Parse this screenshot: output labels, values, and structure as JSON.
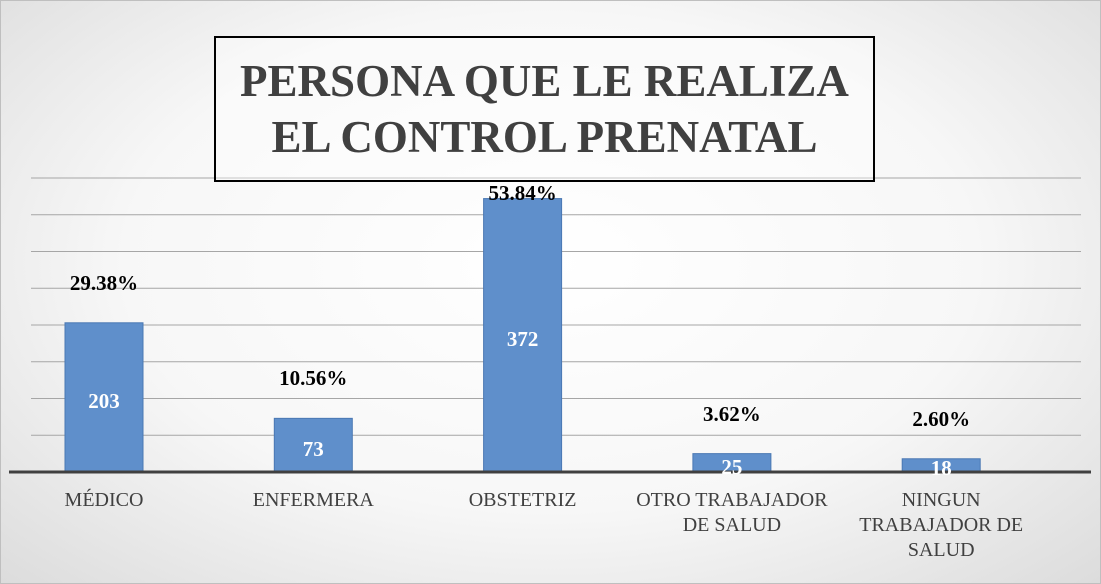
{
  "chart_data": {
    "type": "bar",
    "title": "PERSONA QUE LE REALIZA EL CONTROL PRENATAL",
    "categories": [
      "MÉDICO",
      "ENFERMERA",
      "OBSTETRIZ",
      "OTRO TRABAJADOR DE SALUD",
      "NINGUN TRABAJADOR DE SALUD"
    ],
    "values": [
      203,
      73,
      372,
      25,
      18
    ],
    "percent_values": [
      29.38,
      10.56,
      53.84,
      3.62,
      2.6
    ],
    "percent_labels": [
      "29.38%",
      "10.56%",
      "53.84%",
      "3.62%",
      "2.60%"
    ],
    "color": "#5f8fcb",
    "ylim": [
      0,
      400
    ],
    "yticks": [
      0,
      50,
      100,
      150,
      200,
      250,
      300,
      350,
      400
    ],
    "grid": true
  }
}
